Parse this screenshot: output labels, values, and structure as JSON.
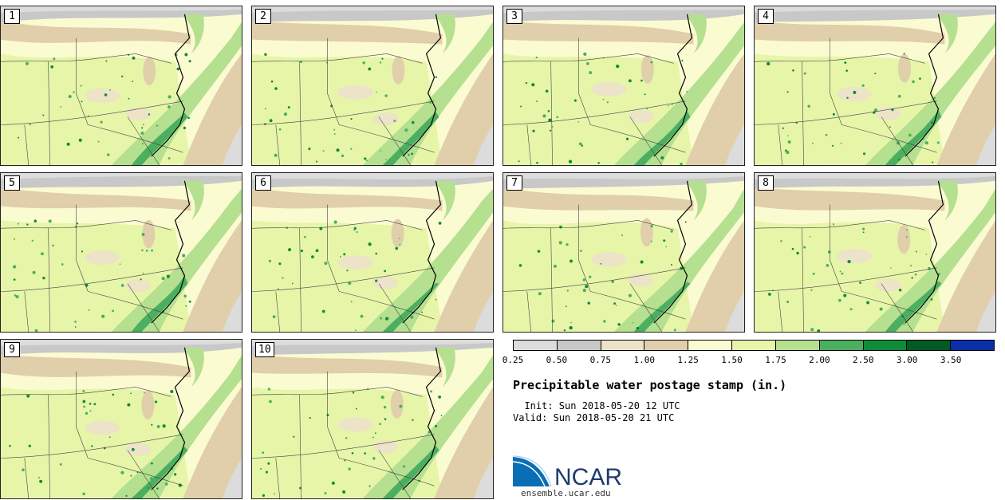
{
  "stamps": [
    {
      "label": "1"
    },
    {
      "label": "2"
    },
    {
      "label": "3"
    },
    {
      "label": "4"
    },
    {
      "label": "5"
    },
    {
      "label": "6"
    },
    {
      "label": "7"
    },
    {
      "label": "8"
    },
    {
      "label": "9"
    },
    {
      "label": "10"
    }
  ],
  "legend": {
    "title": "Precipitable water postage stamp (in.)",
    "ticks": [
      "0.25",
      "0.50",
      "0.75",
      "1.00",
      "1.25",
      "1.50",
      "1.75",
      "2.00",
      "2.50",
      "3.00",
      "3.50"
    ],
    "colors": [
      "#dcdcdc",
      "#c8c8c8",
      "#ede3c8",
      "#e0cfaa",
      "#fbfbd2",
      "#e6f5a8",
      "#b4e090",
      "#4caf60",
      "#108c38",
      "#035a22",
      "#0b2fa8"
    ]
  },
  "info": {
    "init": "  Init: Sun 2018-05-20 12 UTC",
    "valid": "Valid: Sun 2018-05-20 21 UTC"
  },
  "branding": {
    "logo_text": "NCAR",
    "url": "ensemble.ucar.edu"
  }
}
